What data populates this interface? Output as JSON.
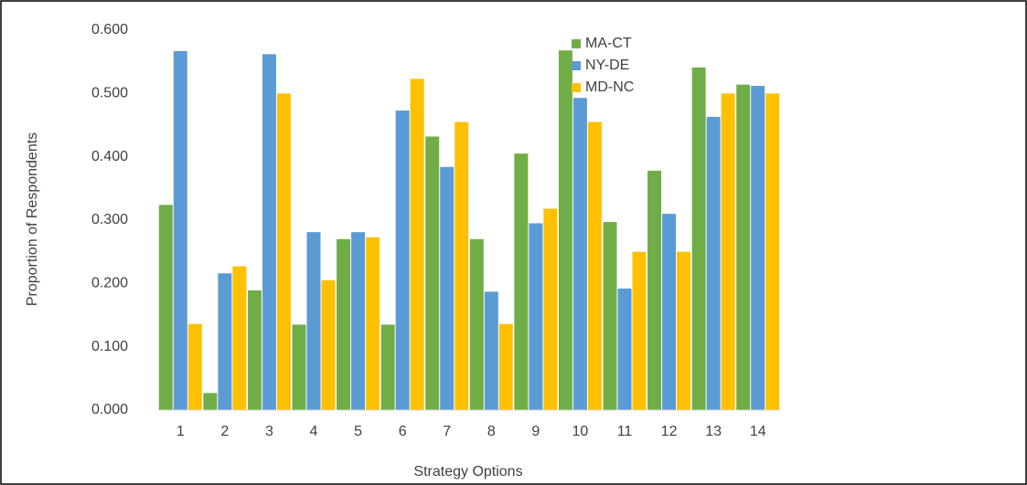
{
  "chart_data": {
    "type": "bar",
    "x_label": "Strategy Options",
    "y_label": "Proportion of Respondents",
    "categories": [
      "1",
      "2",
      "3",
      "4",
      "5",
      "6",
      "7",
      "8",
      "9",
      "10",
      "11",
      "12",
      "13",
      "14"
    ],
    "series": [
      {
        "name": "MA-CT",
        "color": "#70ad47",
        "values": [
          0.324,
          0.027,
          0.189,
          0.135,
          0.27,
          0.135,
          0.432,
          0.27,
          0.405,
          0.568,
          0.297,
          0.378,
          0.541,
          0.514
        ]
      },
      {
        "name": "NY-DE",
        "color": "#5b9bd5",
        "values": [
          0.567,
          0.216,
          0.562,
          0.281,
          0.281,
          0.473,
          0.384,
          0.187,
          0.295,
          0.493,
          0.192,
          0.31,
          0.463,
          0.512
        ]
      },
      {
        "name": "MD-NC",
        "color": "#ffc000",
        "values": [
          0.136,
          0.227,
          0.5,
          0.205,
          0.273,
          0.523,
          0.455,
          0.136,
          0.318,
          0.455,
          0.25,
          0.25,
          0.5,
          0.5
        ]
      }
    ],
    "ylim": [
      0,
      0.6
    ],
    "yticks": [
      {
        "value": 0,
        "label": "0.000"
      },
      {
        "value": 0.1,
        "label": "0.100"
      },
      {
        "value": 0.2,
        "label": "0.200"
      },
      {
        "value": 0.3,
        "label": "0.300"
      },
      {
        "value": 0.4,
        "label": "0.400"
      },
      {
        "value": 0.5,
        "label": "0.500"
      },
      {
        "value": 0.6,
        "label": "0.600"
      }
    ],
    "grid": false,
    "legend": "top-right"
  }
}
